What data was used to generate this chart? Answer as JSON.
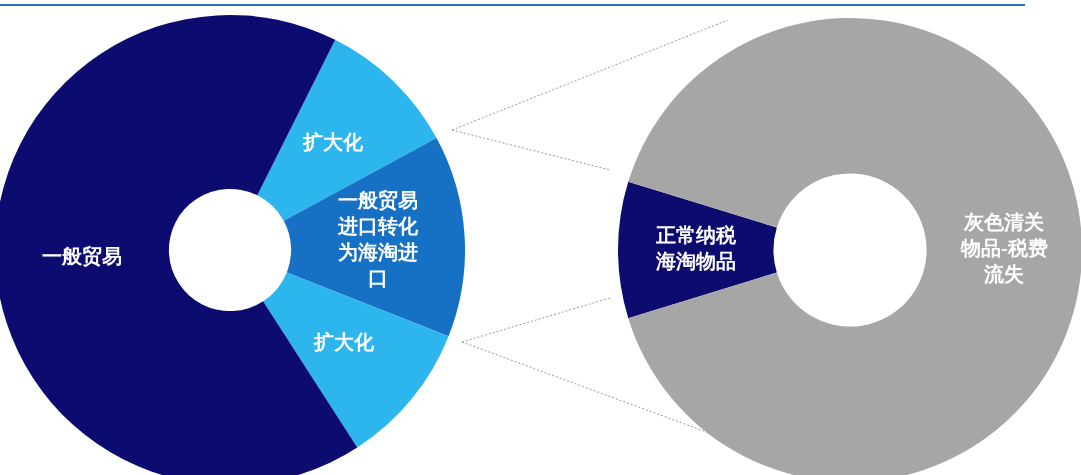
{
  "chart_data": [
    {
      "type": "donut",
      "categories": [
        "扩大化",
        "一般贸易进口转化为海淘进口",
        "扩大化",
        "一般贸易"
      ],
      "values": [
        9.7,
        13.9,
        9.9,
        66.5
      ],
      "colors": [
        "#2db6ee",
        "#1670c4",
        "#2db6ee",
        "#0c0c70"
      ],
      "legend": false
    },
    {
      "type": "donut",
      "categories": [
        "正常纳税海淘物品",
        "灰色清关物品-税费流失"
      ],
      "values": [
        9.5,
        90.5
      ],
      "colors": [
        "#0c0c70",
        "#a6a6a6"
      ],
      "legend": false
    }
  ]
}
